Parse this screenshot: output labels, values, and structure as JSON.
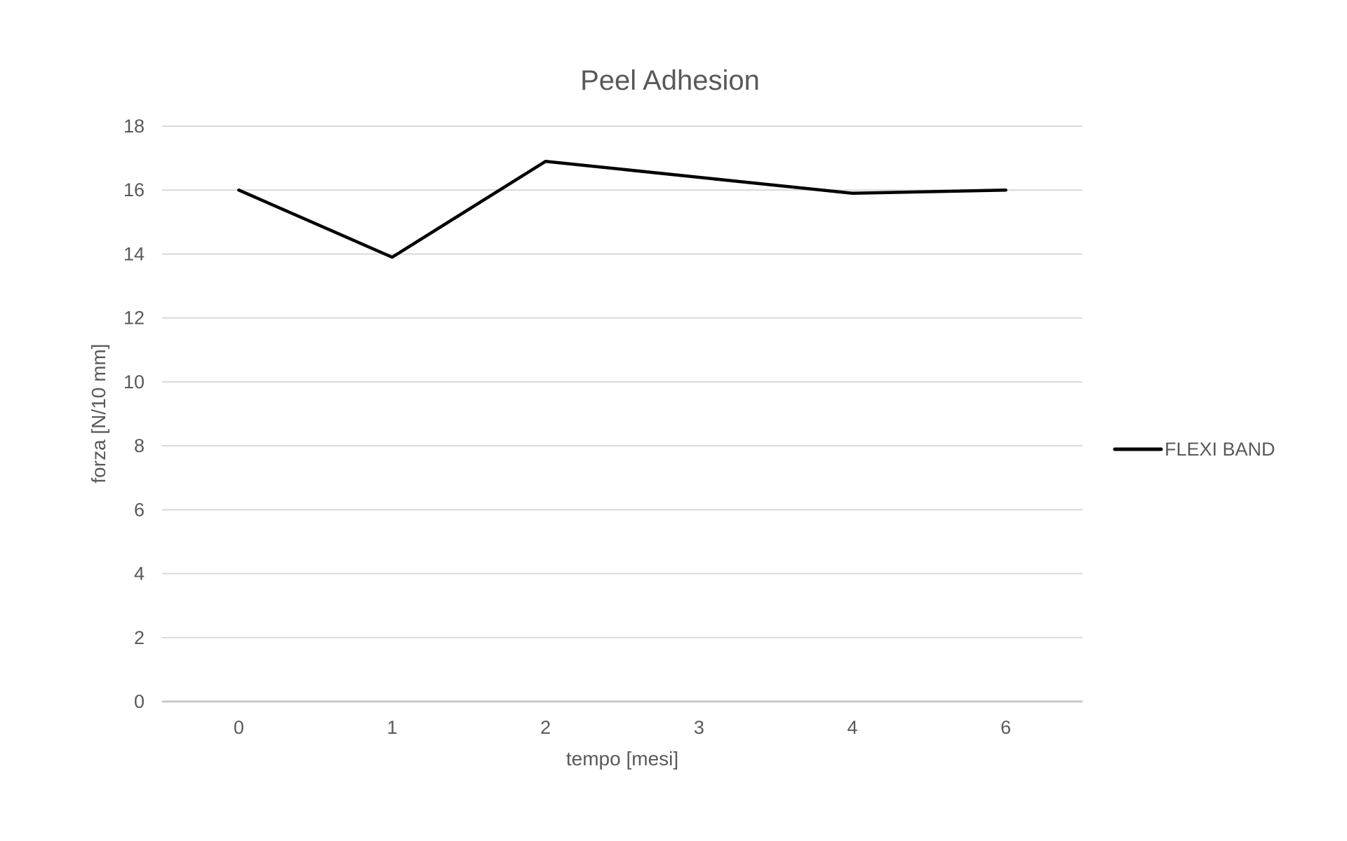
{
  "chart_data": {
    "type": "line",
    "title": "Peel Adhesion",
    "xlabel": "tempo [mesi]",
    "ylabel": "forza [N/10 mm]",
    "categories": [
      "0",
      "1",
      "2",
      "3",
      "4",
      "6"
    ],
    "series": [
      {
        "name": "FLEXI BAND",
        "values": [
          16,
          13.9,
          16.9,
          16.4,
          15.9,
          16
        ],
        "color": "#000000"
      }
    ],
    "ylim": [
      0,
      18
    ],
    "ytick_step": 2,
    "grid": true,
    "legend_position": "right",
    "colors": {
      "gridline": "#d9d9d9",
      "axis_line": "#c9c9c9",
      "text": "#595959",
      "background": "#ffffff"
    }
  }
}
